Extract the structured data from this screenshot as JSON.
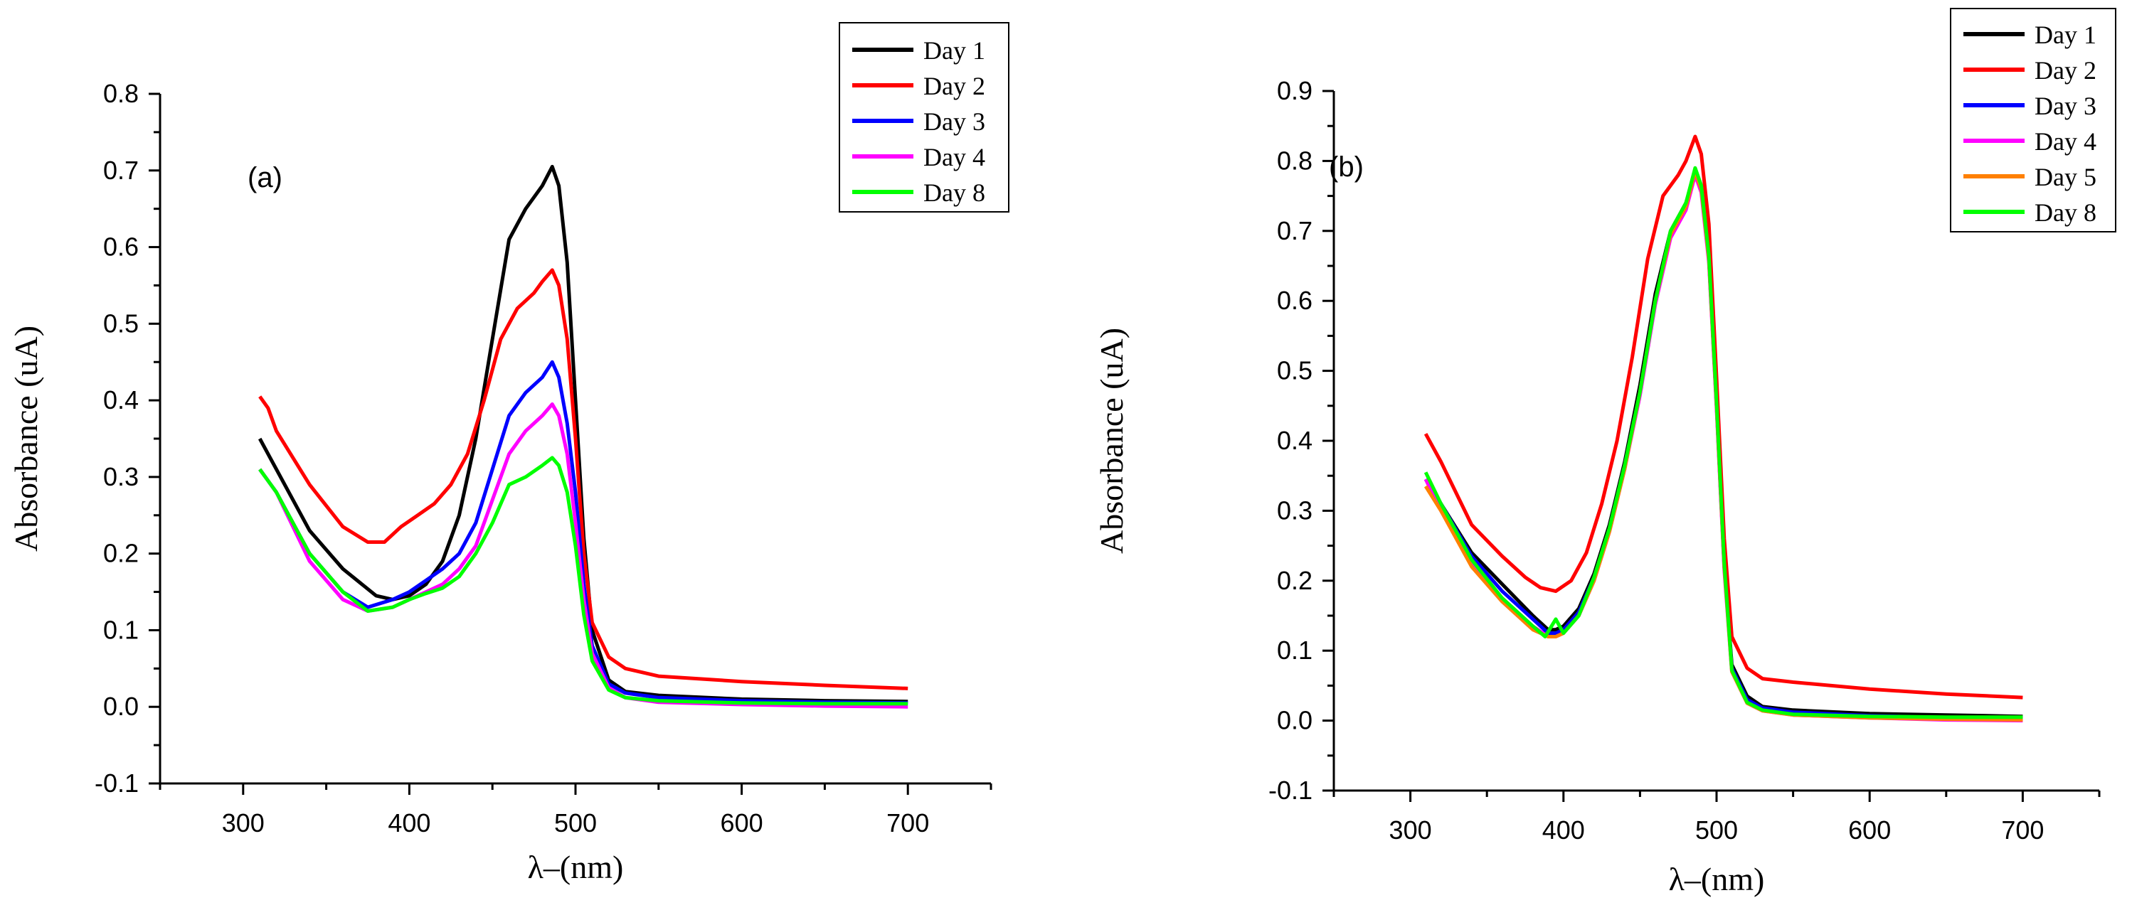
{
  "chart_data": [
    {
      "type": "line",
      "panel_label": "(a)",
      "xlabel": "λ–(nm)",
      "ylabel": "Absorbance (uA)",
      "xlim": [
        250,
        750
      ],
      "ylim": [
        -0.1,
        0.8
      ],
      "xticks": [
        300,
        400,
        500,
        600,
        700
      ],
      "yticks": [
        -0.1,
        0.0,
        0.1,
        0.2,
        0.3,
        0.4,
        0.5,
        0.6,
        0.7,
        0.8
      ],
      "xtick_labels": [
        "300",
        "400",
        "500",
        "600",
        "700"
      ],
      "ytick_labels": [
        "-0.1",
        "0.0",
        "0.1",
        "0.2",
        "0.3",
        "0.4",
        "0.5",
        "0.6",
        "0.7",
        "0.8"
      ],
      "grid": false,
      "legend_position": "top-right",
      "series": [
        {
          "name": "Day 1",
          "color": "#000000",
          "x": [
            310,
            320,
            340,
            360,
            380,
            390,
            400,
            410,
            420,
            430,
            440,
            450,
            460,
            470,
            480,
            486,
            490,
            495,
            500,
            505,
            510,
            520,
            530,
            550,
            600,
            650,
            700
          ],
          "y": [
            0.35,
            0.31,
            0.23,
            0.18,
            0.145,
            0.14,
            0.145,
            0.16,
            0.19,
            0.25,
            0.35,
            0.48,
            0.61,
            0.65,
            0.68,
            0.705,
            0.68,
            0.58,
            0.4,
            0.22,
            0.1,
            0.035,
            0.02,
            0.015,
            0.01,
            0.008,
            0.007
          ]
        },
        {
          "name": "Day 2",
          "color": "#ff0000",
          "x": [
            310,
            315,
            320,
            340,
            360,
            375,
            385,
            395,
            405,
            415,
            425,
            435,
            445,
            455,
            465,
            475,
            480,
            486,
            490,
            495,
            500,
            505,
            510,
            520,
            530,
            550,
            600,
            650,
            700
          ],
          "y": [
            0.405,
            0.39,
            0.36,
            0.29,
            0.235,
            0.215,
            0.215,
            0.235,
            0.25,
            0.265,
            0.29,
            0.33,
            0.4,
            0.48,
            0.52,
            0.54,
            0.555,
            0.57,
            0.55,
            0.48,
            0.35,
            0.2,
            0.11,
            0.065,
            0.05,
            0.04,
            0.033,
            0.028,
            0.024
          ]
        },
        {
          "name": "Day 3",
          "color": "#0000ff",
          "x": [
            310,
            320,
            340,
            360,
            375,
            390,
            400,
            410,
            420,
            430,
            440,
            450,
            460,
            470,
            480,
            486,
            490,
            495,
            500,
            505,
            510,
            520,
            530,
            550,
            600,
            650,
            700
          ],
          "y": [
            0.31,
            0.28,
            0.2,
            0.15,
            0.13,
            0.14,
            0.15,
            0.165,
            0.18,
            0.2,
            0.24,
            0.31,
            0.38,
            0.41,
            0.43,
            0.45,
            0.43,
            0.37,
            0.28,
            0.16,
            0.08,
            0.03,
            0.018,
            0.012,
            0.008,
            0.006,
            0.005
          ]
        },
        {
          "name": "Day 4",
          "color": "#ff00ff",
          "x": [
            310,
            320,
            340,
            360,
            375,
            390,
            400,
            410,
            420,
            430,
            440,
            450,
            460,
            470,
            480,
            486,
            490,
            495,
            500,
            505,
            510,
            520,
            530,
            550,
            600,
            650,
            700
          ],
          "y": [
            0.31,
            0.28,
            0.19,
            0.14,
            0.125,
            0.13,
            0.14,
            0.15,
            0.16,
            0.18,
            0.21,
            0.27,
            0.33,
            0.36,
            0.38,
            0.395,
            0.38,
            0.33,
            0.24,
            0.14,
            0.07,
            0.025,
            0.012,
            0.006,
            0.003,
            0.001,
            0.0
          ]
        },
        {
          "name": "Day 8",
          "color": "#00ff00",
          "x": [
            310,
            320,
            340,
            360,
            375,
            390,
            400,
            410,
            420,
            430,
            440,
            450,
            460,
            470,
            480,
            486,
            490,
            495,
            500,
            505,
            510,
            520,
            530,
            550,
            600,
            650,
            700
          ],
          "y": [
            0.31,
            0.28,
            0.2,
            0.15,
            0.125,
            0.13,
            0.14,
            0.148,
            0.155,
            0.17,
            0.2,
            0.24,
            0.29,
            0.3,
            0.315,
            0.325,
            0.315,
            0.28,
            0.21,
            0.12,
            0.06,
            0.022,
            0.012,
            0.008,
            0.005,
            0.004,
            0.004
          ]
        }
      ]
    },
    {
      "type": "line",
      "panel_label": "(b)",
      "xlabel": "λ–(nm)",
      "ylabel": "Absorbance (uA)",
      "xlim": [
        250,
        750
      ],
      "ylim": [
        -0.1,
        0.9
      ],
      "xticks": [
        300,
        400,
        500,
        600,
        700
      ],
      "yticks": [
        -0.1,
        0.0,
        0.1,
        0.2,
        0.3,
        0.4,
        0.5,
        0.6,
        0.7,
        0.8,
        0.9
      ],
      "xtick_labels": [
        "300",
        "400",
        "500",
        "600",
        "700"
      ],
      "ytick_labels": [
        "-0.1",
        "0.0",
        "0.1",
        "0.2",
        "0.3",
        "0.4",
        "0.5",
        "0.6",
        "0.7",
        "0.8",
        "0.9"
      ],
      "grid": false,
      "legend_position": "top-right",
      "series": [
        {
          "name": "Day 1",
          "color": "#000000",
          "x": [
            310,
            320,
            340,
            360,
            380,
            390,
            395,
            400,
            410,
            420,
            430,
            440,
            450,
            460,
            470,
            480,
            486,
            490,
            495,
            500,
            505,
            510,
            520,
            530,
            550,
            600,
            650,
            700
          ],
          "y": [
            0.345,
            0.31,
            0.24,
            0.195,
            0.15,
            0.13,
            0.13,
            0.135,
            0.16,
            0.21,
            0.28,
            0.37,
            0.48,
            0.61,
            0.7,
            0.74,
            0.785,
            0.76,
            0.66,
            0.45,
            0.22,
            0.08,
            0.035,
            0.02,
            0.015,
            0.01,
            0.008,
            0.006
          ]
        },
        {
          "name": "Day 2",
          "color": "#ff0000",
          "x": [
            310,
            320,
            340,
            360,
            375,
            385,
            395,
            405,
            415,
            425,
            435,
            445,
            455,
            465,
            475,
            480,
            486,
            490,
            495,
            500,
            505,
            510,
            520,
            530,
            550,
            600,
            650,
            700
          ],
          "y": [
            0.41,
            0.37,
            0.28,
            0.235,
            0.205,
            0.19,
            0.185,
            0.2,
            0.24,
            0.31,
            0.4,
            0.52,
            0.66,
            0.75,
            0.78,
            0.8,
            0.835,
            0.81,
            0.71,
            0.49,
            0.26,
            0.12,
            0.075,
            0.06,
            0.055,
            0.045,
            0.038,
            0.033
          ]
        },
        {
          "name": "Day 3",
          "color": "#0000ff",
          "x": [
            310,
            320,
            340,
            360,
            380,
            390,
            395,
            400,
            410,
            420,
            430,
            440,
            450,
            460,
            470,
            480,
            486,
            490,
            495,
            500,
            505,
            510,
            520,
            530,
            550,
            600,
            650,
            700
          ],
          "y": [
            0.345,
            0.31,
            0.235,
            0.185,
            0.145,
            0.125,
            0.125,
            0.13,
            0.155,
            0.205,
            0.275,
            0.365,
            0.47,
            0.6,
            0.695,
            0.735,
            0.785,
            0.76,
            0.66,
            0.45,
            0.22,
            0.075,
            0.03,
            0.018,
            0.012,
            0.007,
            0.004,
            0.002
          ]
        },
        {
          "name": "Day 4",
          "color": "#ff00ff",
          "x": [
            310,
            320,
            340,
            360,
            380,
            390,
            395,
            400,
            410,
            420,
            430,
            440,
            450,
            460,
            470,
            480,
            486,
            490,
            495,
            500,
            505,
            510,
            520,
            530,
            550,
            600,
            650,
            700
          ],
          "y": [
            0.345,
            0.3,
            0.225,
            0.175,
            0.135,
            0.12,
            0.12,
            0.125,
            0.15,
            0.2,
            0.27,
            0.36,
            0.465,
            0.595,
            0.69,
            0.73,
            0.78,
            0.755,
            0.655,
            0.445,
            0.215,
            0.07,
            0.025,
            0.014,
            0.008,
            0.004,
            0.001,
            0.0
          ]
        },
        {
          "name": "Day 5",
          "color": "#ff8000",
          "x": [
            310,
            320,
            340,
            360,
            380,
            390,
            395,
            400,
            410,
            420,
            430,
            440,
            450,
            460,
            470,
            480,
            486,
            490,
            495,
            500,
            505,
            510,
            520,
            530,
            550,
            600,
            650,
            700
          ],
          "y": [
            0.335,
            0.3,
            0.22,
            0.17,
            0.13,
            0.12,
            0.12,
            0.125,
            0.15,
            0.2,
            0.27,
            0.36,
            0.47,
            0.6,
            0.695,
            0.735,
            0.785,
            0.76,
            0.66,
            0.45,
            0.22,
            0.07,
            0.025,
            0.014,
            0.008,
            0.004,
            0.002,
            0.001
          ]
        },
        {
          "name": "Day 8",
          "color": "#00ff00",
          "x": [
            310,
            320,
            340,
            360,
            380,
            388,
            395,
            400,
            410,
            420,
            430,
            440,
            450,
            460,
            470,
            480,
            486,
            490,
            495,
            500,
            505,
            510,
            520,
            530,
            550,
            600,
            650,
            700
          ],
          "y": [
            0.355,
            0.31,
            0.23,
            0.175,
            0.135,
            0.12,
            0.145,
            0.125,
            0.15,
            0.205,
            0.275,
            0.365,
            0.47,
            0.6,
            0.7,
            0.74,
            0.79,
            0.765,
            0.665,
            0.455,
            0.225,
            0.072,
            0.026,
            0.015,
            0.009,
            0.006,
            0.005,
            0.005
          ]
        }
      ]
    }
  ]
}
